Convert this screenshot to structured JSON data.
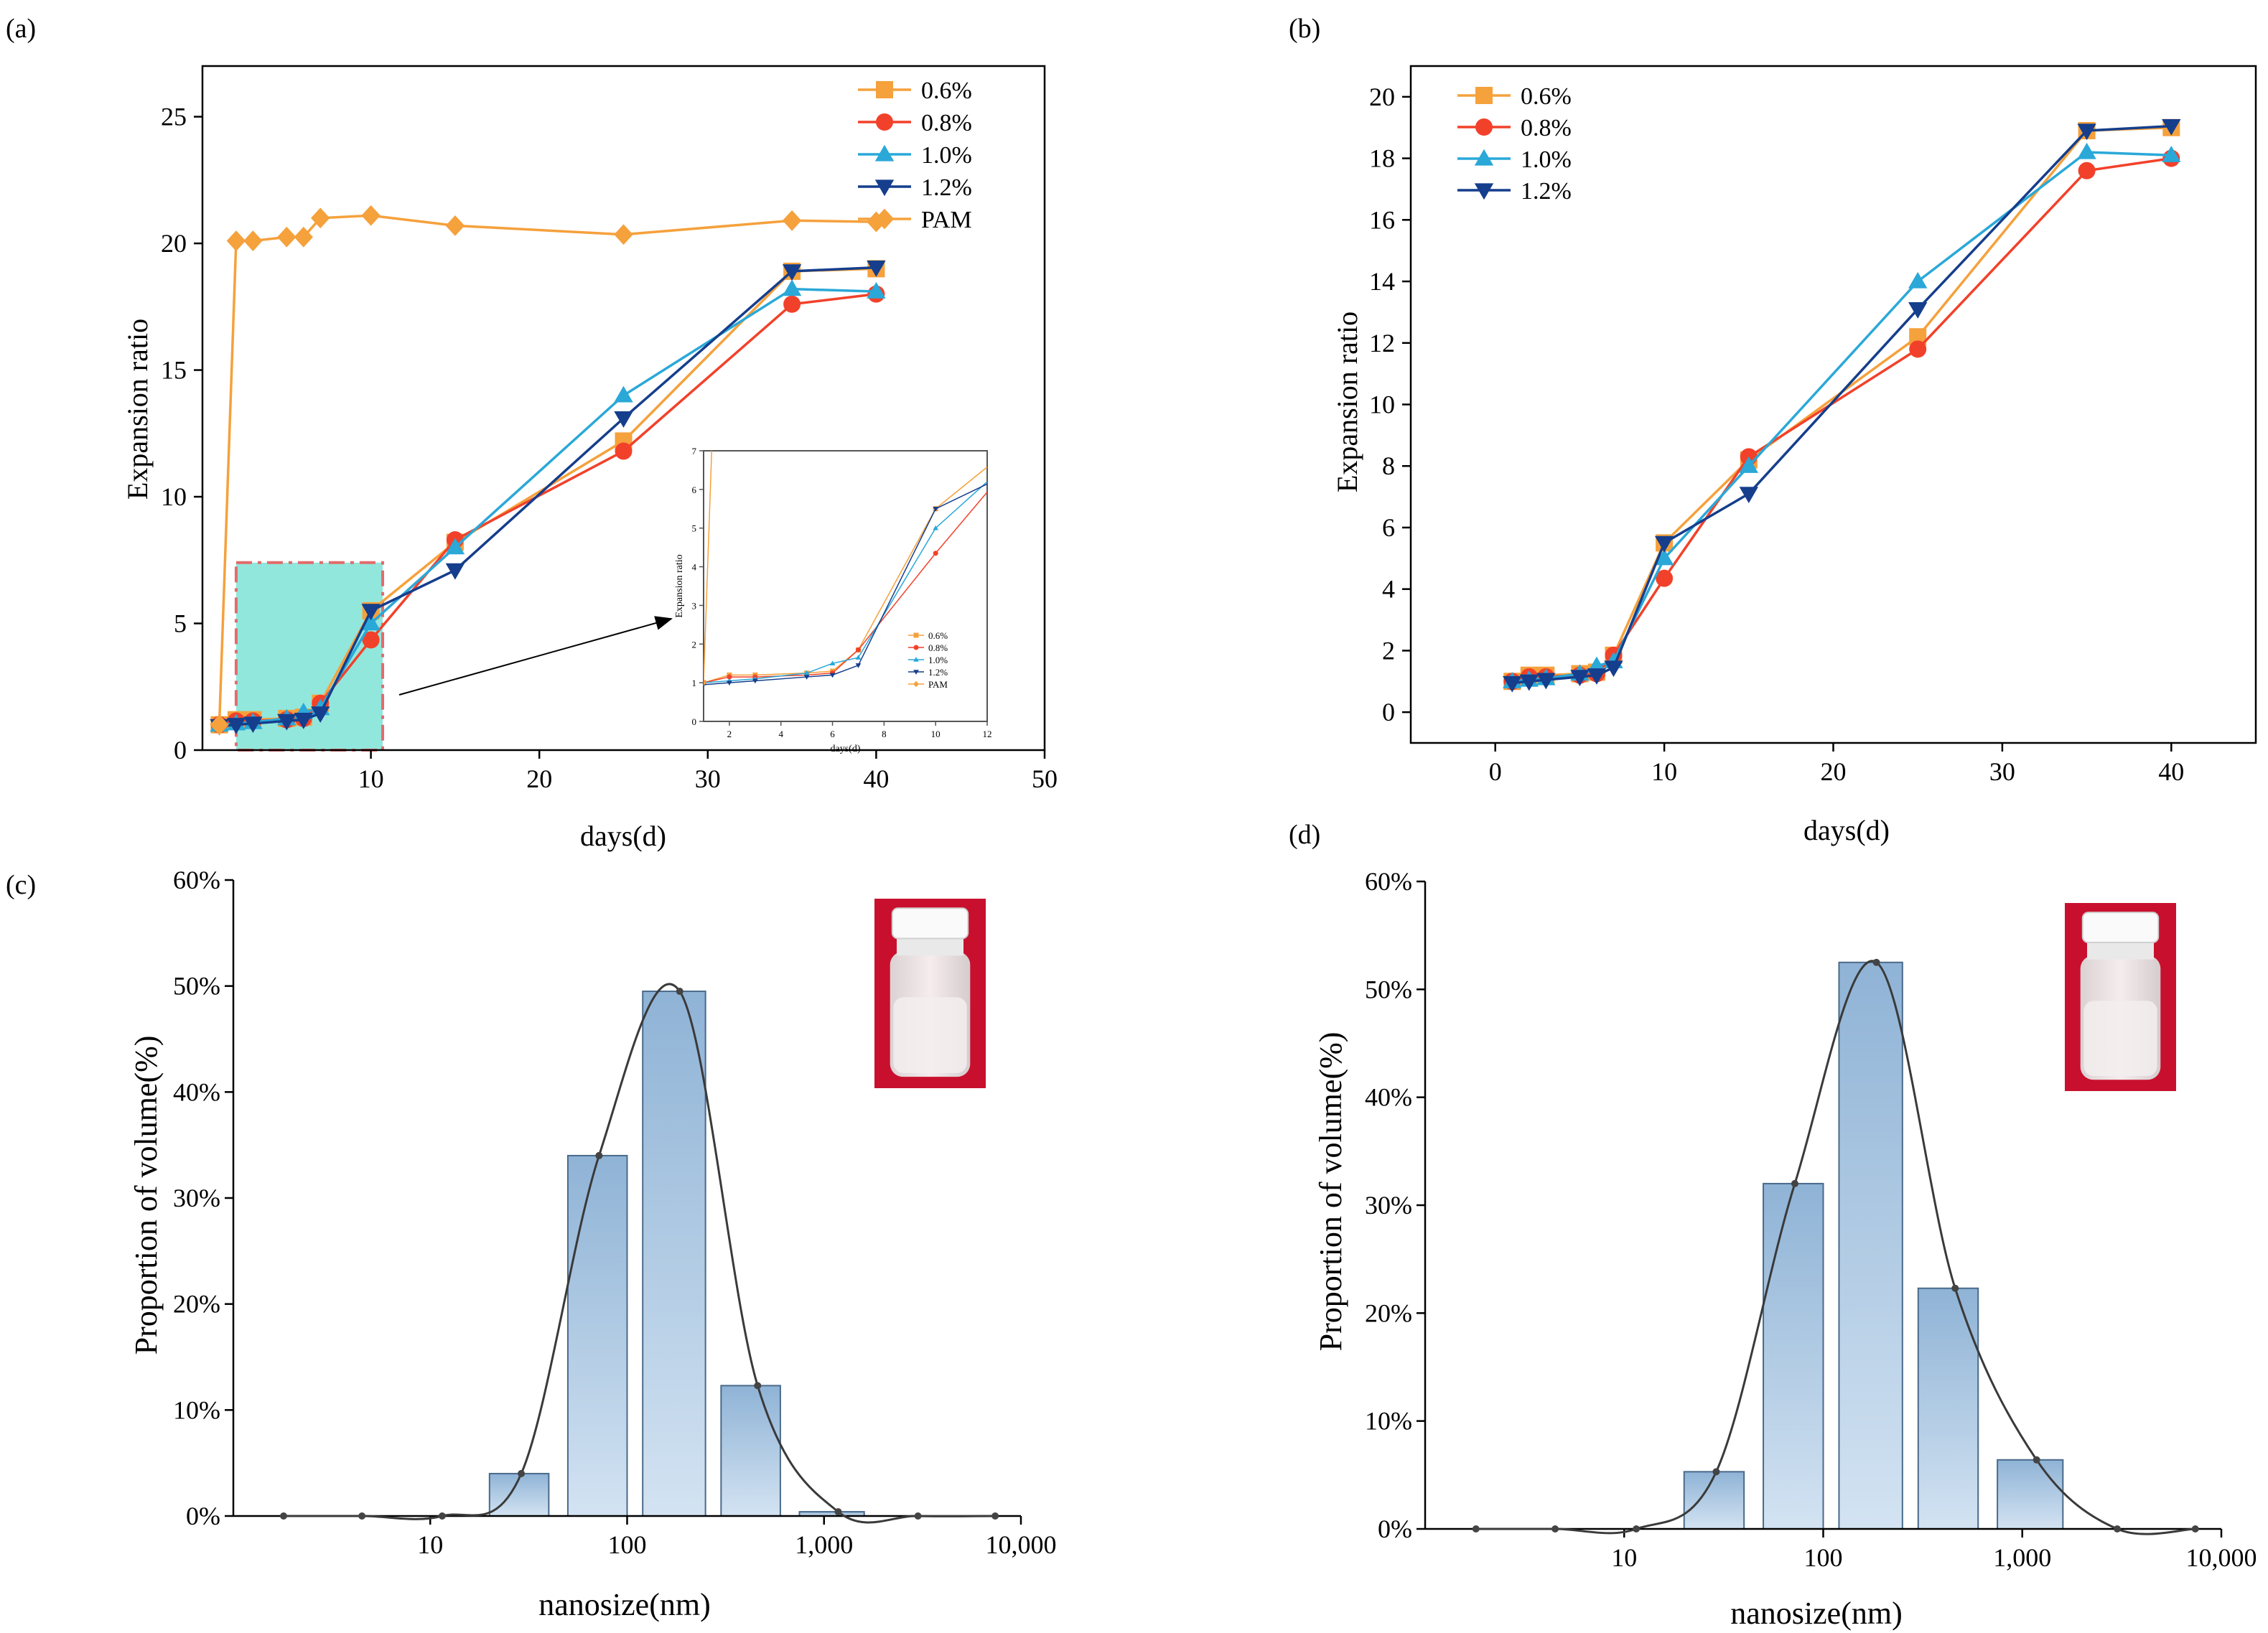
{
  "panels": [
    {
      "panel_label": "(a)",
      "chart_data": {
        "type": "line",
        "title": "",
        "xlabel": "days(d)",
        "ylabel": "Expansion ratio",
        "xlim": [
          0,
          50
        ],
        "ylim": [
          0,
          27
        ],
        "xticks": [
          10,
          20,
          30,
          40,
          50
        ],
        "yticks": [
          0,
          5,
          10,
          15,
          20,
          25
        ],
        "xtick_labels": [
          "10",
          "20",
          "30",
          "40",
          "50"
        ],
        "ytick_labels": [
          "0",
          "5",
          "10",
          "15",
          "20",
          "25"
        ],
        "legend_position": "top-right",
        "series": [
          {
            "name": "0.6%",
            "color": "#F5A13C",
            "marker": "square",
            "x": [
              1,
              2,
              3,
              5,
              6,
              7,
              10,
              15,
              25,
              35,
              40
            ],
            "y": [
              1.0,
              1.2,
              1.2,
              1.25,
              1.3,
              1.85,
              5.5,
              8.2,
              12.2,
              18.9,
              19.0
            ]
          },
          {
            "name": "0.8%",
            "color": "#F2412A",
            "marker": "circle",
            "x": [
              1,
              2,
              3,
              5,
              6,
              7,
              10,
              15,
              25,
              35,
              40
            ],
            "y": [
              1.0,
              1.15,
              1.15,
              1.2,
              1.25,
              1.85,
              4.35,
              8.3,
              11.8,
              17.6,
              18.0
            ]
          },
          {
            "name": "1.0%",
            "color": "#2AA8D8",
            "marker": "triangle-up",
            "x": [
              1,
              2,
              3,
              5,
              6,
              7,
              10,
              15,
              25,
              35,
              40
            ],
            "y": [
              1.0,
              1.05,
              1.1,
              1.25,
              1.5,
              1.65,
              5.0,
              8.0,
              14.0,
              18.2,
              18.1
            ]
          },
          {
            "name": "1.2%",
            "color": "#153E8C",
            "marker": "triangle-down",
            "x": [
              1,
              2,
              3,
              5,
              6,
              7,
              10,
              15,
              25,
              35,
              40
            ],
            "y": [
              0.95,
              1.0,
              1.05,
              1.15,
              1.2,
              1.45,
              5.5,
              7.1,
              13.1,
              18.9,
              19.05
            ]
          },
          {
            "name": "PAM",
            "color": "#F5A13C",
            "marker": "diamond",
            "x": [
              1,
              2,
              3,
              5,
              6,
              7,
              10,
              15,
              25,
              35,
              40
            ],
            "y": [
              1.0,
              20.1,
              20.1,
              20.25,
              20.25,
              21.0,
              21.1,
              20.7,
              20.35,
              20.9,
              20.85
            ]
          }
        ],
        "inset": {
          "xlabel": "days(d)",
          "ylabel": "Expansion ratio",
          "xlim": [
            1,
            12
          ],
          "ylim": [
            0,
            7
          ],
          "xticks": [
            2,
            4,
            6,
            8,
            10,
            12
          ],
          "yticks": [
            0,
            1,
            2,
            3,
            4,
            5,
            6,
            7
          ],
          "xtick_labels": [
            "2",
            "4",
            "6",
            "8",
            "10",
            "12"
          ],
          "ytick_labels": [
            "0",
            "1",
            "2",
            "3",
            "4",
            "5",
            "6",
            "7"
          ],
          "legend_entries": [
            "0.6%",
            "0.8%",
            "1.0%",
            "1.2%",
            "PAM"
          ]
        }
      }
    },
    {
      "panel_label": "(b)",
      "chart_data": {
        "type": "line",
        "title": "",
        "xlabel": "days(d)",
        "ylabel": "Expansion ratio",
        "xlim": [
          -5,
          45
        ],
        "ylim": [
          -1,
          21
        ],
        "xticks": [
          0,
          10,
          20,
          30,
          40
        ],
        "yticks": [
          0,
          2,
          4,
          6,
          8,
          10,
          12,
          14,
          16,
          18,
          20
        ],
        "xtick_labels": [
          "0",
          "10",
          "20",
          "30",
          "40"
        ],
        "ytick_labels": [
          "0",
          "2",
          "4",
          "6",
          "8",
          "10",
          "12",
          "14",
          "16",
          "18",
          "20"
        ],
        "legend_position": "top-left",
        "series": [
          {
            "name": "0.6%",
            "color": "#F5A13C",
            "marker": "square",
            "x": [
              1,
              2,
              3,
              5,
              6,
              7,
              10,
              15,
              25,
              35,
              40
            ],
            "y": [
              1.0,
              1.2,
              1.2,
              1.25,
              1.3,
              1.85,
              5.5,
              8.2,
              12.2,
              18.9,
              19.0
            ]
          },
          {
            "name": "0.8%",
            "color": "#F2412A",
            "marker": "circle",
            "x": [
              1,
              2,
              3,
              5,
              6,
              7,
              10,
              15,
              25,
              35,
              40
            ],
            "y": [
              1.0,
              1.15,
              1.15,
              1.2,
              1.25,
              1.85,
              4.35,
              8.3,
              11.8,
              17.6,
              18.0
            ]
          },
          {
            "name": "1.0%",
            "color": "#2AA8D8",
            "marker": "triangle-up",
            "x": [
              1,
              2,
              3,
              5,
              6,
              7,
              10,
              15,
              25,
              35,
              40
            ],
            "y": [
              1.0,
              1.05,
              1.1,
              1.25,
              1.5,
              1.65,
              5.0,
              8.0,
              14.0,
              18.2,
              18.1
            ]
          },
          {
            "name": "1.2%",
            "color": "#153E8C",
            "marker": "triangle-down",
            "x": [
              1,
              2,
              3,
              5,
              6,
              7,
              10,
              15,
              25,
              35,
              40
            ],
            "y": [
              0.95,
              1.0,
              1.05,
              1.15,
              1.2,
              1.45,
              5.5,
              7.1,
              13.1,
              18.9,
              19.05
            ]
          }
        ]
      }
    },
    {
      "panel_label": "(c)",
      "chart_data": {
        "type": "bar",
        "title": "",
        "xlabel": "nanosize(nm)",
        "ylabel": "Proportion of volume(%)",
        "x_scale": "log",
        "xlim": [
          1,
          10000
        ],
        "ylim": [
          0,
          60
        ],
        "xticks": [
          10,
          100,
          1000,
          10000
        ],
        "xtick_labels": [
          "10",
          "100",
          "1,000",
          "10,000"
        ],
        "yticks": [
          0,
          10,
          20,
          30,
          40,
          50,
          60
        ],
        "ytick_labels": [
          "0%",
          "10%",
          "20%",
          "30%",
          "40%",
          "50%",
          "60%"
        ],
        "bars": [
          {
            "from": 20,
            "to": 40,
            "value": 4.0
          },
          {
            "from": 50,
            "to": 100,
            "value": 34.0
          },
          {
            "from": 120,
            "to": 250,
            "value": 49.5
          },
          {
            "from": 300,
            "to": 600,
            "value": 12.3
          },
          {
            "from": 750,
            "to": 1600,
            "value": 0.4
          }
        ],
        "curve_points": {
          "x": [
            1.8,
            4.5,
            11.5,
            29,
            72,
            185,
            460,
            1180,
            3000,
            7400
          ],
          "y": [
            0,
            0,
            0,
            4.0,
            34.0,
            49.5,
            12.3,
            0.4,
            0,
            0
          ]
        },
        "photo": "vial-photo"
      }
    },
    {
      "panel_label": "(d)",
      "chart_data": {
        "type": "bar",
        "title": "",
        "xlabel": "nanosize(nm)",
        "ylabel": "Proportion of volume(%)",
        "x_scale": "log",
        "xlim": [
          1,
          10000
        ],
        "ylim": [
          0,
          60
        ],
        "xticks": [
          10,
          100,
          1000,
          10000
        ],
        "xtick_labels": [
          "10",
          "100",
          "1,000",
          "10,000"
        ],
        "yticks": [
          0,
          10,
          20,
          30,
          40,
          50,
          60
        ],
        "ytick_labels": [
          "0%",
          "10%",
          "20%",
          "30%",
          "40%",
          "50%",
          "60%"
        ],
        "bars": [
          {
            "from": 20,
            "to": 40,
            "value": 5.3
          },
          {
            "from": 50,
            "to": 100,
            "value": 32.0
          },
          {
            "from": 120,
            "to": 250,
            "value": 52.5
          },
          {
            "from": 300,
            "to": 600,
            "value": 22.3
          },
          {
            "from": 750,
            "to": 1600,
            "value": 6.4
          }
        ],
        "curve_points": {
          "x": [
            1.8,
            4.5,
            11.5,
            29,
            72,
            185,
            460,
            1180,
            3000,
            7400
          ],
          "y": [
            0,
            0,
            0,
            5.3,
            32.0,
            52.5,
            22.3,
            6.4,
            0,
            0
          ]
        },
        "photo": "vial-photo"
      }
    }
  ]
}
